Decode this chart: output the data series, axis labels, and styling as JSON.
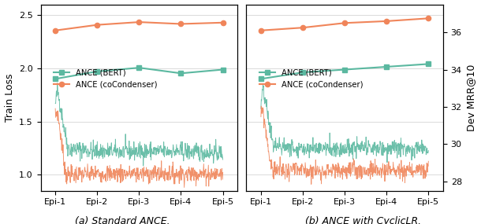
{
  "teal_color": "#5BB8A0",
  "orange_color": "#F0855A",
  "background": "#ffffff",
  "grid_color": "#cccccc",
  "subplot_a_title": "(a) Standard ANCE.",
  "subplot_b_title": "(b) ANCE with CyclicLR.",
  "xlabel_labels": [
    "Epi-1",
    "Epi-2",
    "Epi-3",
    "Epi-4",
    "Epi-5"
  ],
  "ylabel_left": "Train Loss",
  "ylabel_right": "Dev MRR@10",
  "legend_bert": "ANCE (BERT)",
  "legend_cocondenser": "ANCE (coCondenser)",
  "ylim_left": [
    0.85,
    2.6
  ],
  "ylim_right": [
    27.5,
    37.5
  ],
  "yticks_left": [
    1.0,
    1.5,
    2.0,
    2.5
  ],
  "yticks_right": [
    28,
    30,
    32,
    34,
    36
  ],
  "dev_mrr_bert_a": [
    33.5,
    33.9,
    34.1,
    33.8,
    34.0
  ],
  "dev_mrr_cocondenser_a": [
    36.1,
    36.4,
    36.55,
    36.45,
    36.52
  ],
  "dev_mrr_bert_b": [
    33.5,
    33.85,
    34.0,
    34.15,
    34.3
  ],
  "dev_mrr_cocondenser_b": [
    36.1,
    36.25,
    36.5,
    36.6,
    36.75
  ],
  "num_noise_points": 500,
  "figsize": [
    6.1,
    2.85
  ],
  "dpi": 100
}
